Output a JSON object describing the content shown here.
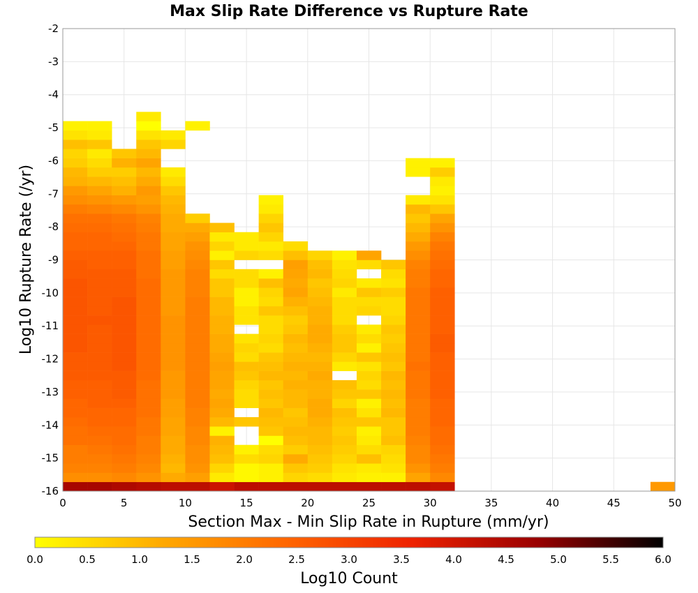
{
  "chart_data": {
    "type": "heatmap",
    "title": "Max Slip Rate Difference vs Rupture Rate",
    "xlabel": "Section Max - Min Slip Rate in Rupture (mm/yr)",
    "ylabel": "Log10 Rupture Rate (/yr)",
    "xlim": [
      0,
      50
    ],
    "ylim": [
      -16,
      -2
    ],
    "x_ticks": [
      0,
      5,
      10,
      15,
      20,
      25,
      30,
      35,
      40,
      45,
      50
    ],
    "y_ticks": [
      -2,
      -3,
      -4,
      -5,
      -6,
      -7,
      -8,
      -9,
      -10,
      -11,
      -12,
      -13,
      -14,
      -15,
      -16
    ],
    "x_bin_width": 2,
    "y_bin_width": 0.28,
    "y_bin_start": -16,
    "colorbar": {
      "label": "Log10 Count",
      "range": [
        0,
        6
      ],
      "ticks": [
        "0.0",
        "0.5",
        "1.0",
        "1.5",
        "2.0",
        "2.5",
        "3.0",
        "3.5",
        "4.0",
        "4.5",
        "5.0",
        "5.5",
        "6.0"
      ],
      "colors": [
        "#ffff00",
        "#ffaa00",
        "#ff6600",
        "#ee2200",
        "#990000",
        "#000000"
      ]
    },
    "grid": true,
    "cells_note": "Each row: column bin start x (mm/yr); values = log10 count per y bin from -16 upward",
    "columns": [
      {
        "x": 0,
        "values": [
          4.6,
          1.7,
          1.9,
          2.0,
          2.0,
          2.2,
          2.2,
          2.3,
          2.4,
          2.4,
          2.5,
          2.5,
          2.6,
          2.6,
          2.6,
          2.7,
          2.7,
          2.7,
          2.7,
          2.7,
          2.7,
          2.7,
          2.7,
          2.6,
          2.6,
          2.5,
          2.4,
          2.4,
          2.3,
          2.2,
          2.0,
          1.7,
          1.5,
          1.1,
          1.0,
          0.7,
          0.6,
          0.9,
          0.4,
          0.2
        ]
      },
      {
        "x": 2,
        "values": [
          4.6,
          1.7,
          1.9,
          2.0,
          2.1,
          2.2,
          2.3,
          2.4,
          2.4,
          2.5,
          2.5,
          2.5,
          2.6,
          2.6,
          2.6,
          2.6,
          2.6,
          2.6,
          2.7,
          2.6,
          2.6,
          2.6,
          2.6,
          2.6,
          2.5,
          2.5,
          2.4,
          2.4,
          2.3,
          2.2,
          1.9,
          1.6,
          1.3,
          1.0,
          0.7,
          0.5,
          0.3,
          0.8,
          0.3,
          0.2
        ]
      },
      {
        "x": 4,
        "values": [
          4.5,
          1.8,
          2.0,
          2.1,
          2.2,
          2.3,
          2.3,
          2.4,
          2.4,
          2.5,
          2.6,
          2.6,
          2.6,
          2.7,
          2.7,
          2.7,
          2.7,
          2.7,
          2.7,
          2.7,
          2.7,
          2.6,
          2.6,
          2.6,
          2.5,
          2.5,
          2.4,
          2.3,
          2.2,
          2.1,
          1.8,
          1.5,
          1.1,
          0.9,
          0.7,
          1.1,
          0.8
        ]
      },
      {
        "x": 6,
        "values": [
          4.4,
          1.6,
          1.8,
          1.9,
          2.0,
          2.0,
          2.1,
          2.1,
          2.2,
          2.2,
          2.2,
          2.2,
          2.3,
          2.3,
          2.3,
          2.3,
          2.3,
          2.3,
          2.3,
          2.3,
          2.3,
          2.3,
          2.3,
          2.2,
          2.2,
          2.2,
          2.1,
          2.1,
          2.0,
          1.9,
          1.6,
          1.4,
          1.5,
          1.2,
          1.0,
          1.3,
          1.0,
          0.8,
          0.4,
          0.0,
          0.3
        ]
      },
      {
        "x": 8,
        "values": [
          4.3,
          1.2,
          1.0,
          1.1,
          1.2,
          1.2,
          1.3,
          1.3,
          1.4,
          1.4,
          1.5,
          1.5,
          1.5,
          1.6,
          1.6,
          1.6,
          1.6,
          1.6,
          1.6,
          1.5,
          1.5,
          1.5,
          1.5,
          1.5,
          1.4,
          1.4,
          1.3,
          1.3,
          1.2,
          1.2,
          1.1,
          1.0,
          0.8,
          0.5,
          0.3,
          -1,
          -1,
          0.6,
          0.3
        ]
      },
      {
        "x": 10,
        "values": [
          4.3,
          1.4,
          1.6,
          1.7,
          1.7,
          1.8,
          1.8,
          1.9,
          1.9,
          2.0,
          2.0,
          2.0,
          2.0,
          2.0,
          2.0,
          2.0,
          2.0,
          2.0,
          2.0,
          2.0,
          2.0,
          1.9,
          1.9,
          1.9,
          1.8,
          1.7,
          1.6,
          1.4,
          1.2,
          0.7,
          -1,
          -1,
          -1,
          -1,
          -1,
          -1,
          -1,
          -1,
          -1,
          0.2
        ]
      },
      {
        "x": 12,
        "values": [
          4.1,
          0.3,
          0.6,
          0.9,
          1.0,
          1.1,
          0.2,
          1.0,
          1.2,
          1.3,
          1.2,
          1.3,
          1.3,
          1.4,
          1.3,
          1.2,
          1.2,
          1.1,
          1.1,
          1.0,
          1.0,
          0.8,
          0.8,
          0.5,
          0.8,
          0.2,
          0.6,
          0.3,
          0.9
        ]
      },
      {
        "x": 14,
        "values": [
          4.3,
          0.1,
          0.1,
          0.5,
          0.2,
          -1,
          -1,
          0.8,
          -1,
          0.5,
          0.5,
          0.6,
          0.8,
          0.9,
          0.5,
          0.6,
          0.4,
          -1,
          0.4,
          0.4,
          0.2,
          0.2,
          0.5,
          0.5,
          -1,
          0.6,
          0.3,
          0.3
        ]
      },
      {
        "x": 16,
        "values": [
          4.3,
          0.2,
          0.2,
          0.6,
          0.5,
          0.0,
          0.8,
          0.9,
          1.0,
          0.8,
          0.9,
          0.8,
          1.0,
          0.9,
          0.8,
          0.5,
          0.6,
          0.5,
          0.5,
          0.8,
          0.5,
          0.6,
          0.9,
          0.2,
          -1,
          0.5,
          0.3,
          0.6,
          0.8,
          0.6,
          0.3,
          0.2
        ]
      },
      {
        "x": 18,
        "values": [
          4.3,
          0.6,
          0.8,
          1.2,
          0.7,
          0.9,
          1.0,
          0.9,
          0.8,
          1.0,
          1.0,
          1.1,
          1.0,
          1.1,
          1.0,
          0.9,
          1.0,
          0.8,
          0.7,
          0.9,
          1.1,
          1.3,
          1.2,
          1.3,
          1.4,
          0.9,
          0.5
        ]
      },
      {
        "x": 20,
        "values": [
          4.3,
          0.5,
          0.7,
          0.8,
          0.9,
          1.0,
          1.0,
          1.1,
          1.2,
          1.2,
          1.1,
          1.1,
          1.2,
          1.1,
          1.0,
          1.1,
          1.2,
          1.2,
          1.1,
          1.1,
          1.0,
          0.9,
          0.8,
          1.0,
          0.9,
          0.6
        ]
      },
      {
        "x": 22,
        "values": [
          4.3,
          0.3,
          0.4,
          0.6,
          0.7,
          0.8,
          0.7,
          0.8,
          0.9,
          0.6,
          0.8,
          0.9,
          -1,
          0.3,
          0.6,
          0.8,
          0.8,
          0.7,
          0.5,
          0.5,
          0.5,
          0.3,
          0.6,
          0.5,
          0.4,
          0.2
        ]
      },
      {
        "x": 24,
        "values": [
          4.3,
          0.2,
          0.3,
          0.9,
          0.5,
          0.3,
          0.2,
          0.8,
          0.4,
          0.2,
          0.8,
          0.5,
          0.6,
          0.4,
          0.8,
          0.2,
          0.5,
          0.3,
          -1,
          0.6,
          0.5,
          0.8,
          0.3,
          -1,
          0.5,
          1.3
        ]
      },
      {
        "x": 26,
        "values": [
          4.3,
          0.2,
          0.4,
          0.5,
          0.6,
          0.9,
          0.8,
          0.8,
          1.0,
          0.9,
          1.0,
          0.9,
          1.0,
          0.8,
          0.9,
          0.8,
          0.7,
          0.8,
          0.6,
          0.5,
          0.5,
          0.7,
          0.4,
          0.5,
          0.8
        ]
      },
      {
        "x": 28,
        "values": [
          4.3,
          1.3,
          1.6,
          1.8,
          1.8,
          1.9,
          2.0,
          2.0,
          2.0,
          2.0,
          2.1,
          2.1,
          2.1,
          2.2,
          2.1,
          2.1,
          2.1,
          2.1,
          2.1,
          2.1,
          2.1,
          2.1,
          2.0,
          2.0,
          1.9,
          1.7,
          1.5,
          1.2,
          1.0,
          0.8,
          1.0,
          0.3,
          -1,
          -1,
          0.2,
          0.2
        ]
      },
      {
        "x": 30,
        "values": [
          4.2,
          1.8,
          2.0,
          2.1,
          2.2,
          2.3,
          2.3,
          2.4,
          2.4,
          2.4,
          2.5,
          2.5,
          2.5,
          2.5,
          2.5,
          2.6,
          2.6,
          2.5,
          2.5,
          2.5,
          2.5,
          2.5,
          2.4,
          2.4,
          2.3,
          2.2,
          2.1,
          1.9,
          1.6,
          1.3,
          0.8,
          0.4,
          0.2,
          0.3,
          0.7,
          0.2
        ]
      },
      {
        "x": 48,
        "values": [
          1.5
        ]
      }
    ]
  }
}
